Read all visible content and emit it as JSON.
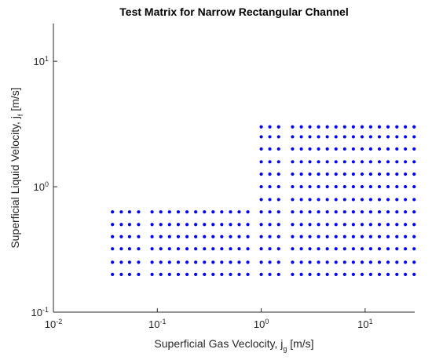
{
  "chart_data": {
    "type": "scatter",
    "title": "Test Matrix for Narrow Rectangular Channel",
    "x_label": "Superficial Gas Veclocity, j_g [m/s]",
    "y_label": "Superficial Liquid Velocity, j_f [m/s]",
    "xlog": true,
    "ylog": true,
    "xlim": [
      0.01,
      30
    ],
    "ylim": [
      0.1,
      20
    ],
    "xticks": [
      {
        "value": 0.01,
        "label": "10^-2"
      },
      {
        "value": 0.1,
        "label": "10^-1"
      },
      {
        "value": 1,
        "label": "10^0"
      },
      {
        "value": 10,
        "label": "10^1"
      }
    ],
    "yticks": [
      {
        "value": 0.1,
        "label": "10^-1"
      },
      {
        "value": 1,
        "label": "10^0"
      },
      {
        "value": 10,
        "label": "10^1"
      }
    ],
    "color": "#0000ff",
    "x": [
      0.037,
      0.037,
      0.037,
      0.037,
      0.037,
      0.037,
      0.045,
      0.045,
      0.045,
      0.045,
      0.045,
      0.045,
      0.054,
      0.054,
      0.054,
      0.054,
      0.054,
      0.054,
      0.066,
      0.066,
      0.066,
      0.066,
      0.066,
      0.066,
      0.089,
      0.089,
      0.089,
      0.089,
      0.089,
      0.089,
      0.108,
      0.108,
      0.108,
      0.108,
      0.108,
      0.108,
      0.131,
      0.131,
      0.131,
      0.131,
      0.131,
      0.131,
      0.159,
      0.159,
      0.159,
      0.159,
      0.159,
      0.159,
      0.193,
      0.193,
      0.193,
      0.193,
      0.193,
      0.193,
      0.234,
      0.234,
      0.234,
      0.234,
      0.234,
      0.234,
      0.284,
      0.284,
      0.284,
      0.284,
      0.284,
      0.284,
      0.344,
      0.344,
      0.344,
      0.344,
      0.344,
      0.344,
      0.417,
      0.417,
      0.417,
      0.417,
      0.417,
      0.417,
      0.506,
      0.506,
      0.506,
      0.506,
      0.506,
      0.506,
      0.613,
      0.613,
      0.613,
      0.613,
      0.613,
      0.613,
      0.743,
      0.743,
      0.743,
      0.743,
      0.743,
      0.743,
      1,
      1,
      1,
      1,
      1,
      1,
      1,
      1,
      1,
      1,
      1,
      1,
      1,
      1.21,
      1.21,
      1.21,
      1.21,
      1.21,
      1.21,
      1.21,
      1.21,
      1.21,
      1.21,
      1.21,
      1.21,
      1.21,
      1.47,
      1.47,
      1.47,
      1.47,
      1.47,
      1.47,
      1.47,
      1.47,
      1.47,
      1.47,
      1.47,
      1.47,
      1.47,
      2,
      2,
      2,
      2,
      2,
      2,
      2,
      2,
      2,
      2,
      2,
      2,
      2,
      2.43,
      2.43,
      2.43,
      2.43,
      2.43,
      2.43,
      2.43,
      2.43,
      2.43,
      2.43,
      2.43,
      2.43,
      2.43,
      2.94,
      2.94,
      2.94,
      2.94,
      2.94,
      2.94,
      2.94,
      2.94,
      2.94,
      2.94,
      2.94,
      2.94,
      2.94,
      3.56,
      3.56,
      3.56,
      3.56,
      3.56,
      3.56,
      3.56,
      3.56,
      3.56,
      3.56,
      3.56,
      3.56,
      3.56,
      4.32,
      4.32,
      4.32,
      4.32,
      4.32,
      4.32,
      4.32,
      4.32,
      4.32,
      4.32,
      4.32,
      4.32,
      4.32,
      5.24,
      5.24,
      5.24,
      5.24,
      5.24,
      5.24,
      5.24,
      5.24,
      5.24,
      5.24,
      5.24,
      5.24,
      5.24,
      6.35,
      6.35,
      6.35,
      6.35,
      6.35,
      6.35,
      6.35,
      6.35,
      6.35,
      6.35,
      6.35,
      6.35,
      6.35,
      7.7,
      7.7,
      7.7,
      7.7,
      7.7,
      7.7,
      7.7,
      7.7,
      7.7,
      7.7,
      7.7,
      7.7,
      7.7,
      9.34,
      9.34,
      9.34,
      9.34,
      9.34,
      9.34,
      9.34,
      9.34,
      9.34,
      9.34,
      9.34,
      9.34,
      9.34,
      11.3,
      11.3,
      11.3,
      11.3,
      11.3,
      11.3,
      11.3,
      11.3,
      11.3,
      11.3,
      11.3,
      11.3,
      11.3,
      13.7,
      13.7,
      13.7,
      13.7,
      13.7,
      13.7,
      13.7,
      13.7,
      13.7,
      13.7,
      13.7,
      13.7,
      13.7,
      16.6,
      16.6,
      16.6,
      16.6,
      16.6,
      16.6,
      16.6,
      16.6,
      16.6,
      16.6,
      16.6,
      16.6,
      16.6,
      20.2,
      20.2,
      20.2,
      20.2,
      20.2,
      20.2,
      20.2,
      20.2,
      20.2,
      20.2,
      20.2,
      20.2,
      20.2,
      24.4,
      24.4,
      24.4,
      24.4,
      24.4,
      24.4,
      24.4,
      24.4,
      24.4,
      24.4,
      24.4,
      24.4,
      24.4,
      29.6,
      29.6,
      29.6,
      29.6,
      29.6,
      29.6,
      29.6,
      29.6,
      29.6,
      29.6,
      29.6,
      29.6,
      29.6
    ],
    "values": [
      0.2,
      0.25,
      0.32,
      0.4,
      0.5,
      0.63,
      0.2,
      0.25,
      0.32,
      0.4,
      0.5,
      0.63,
      0.2,
      0.25,
      0.32,
      0.4,
      0.5,
      0.63,
      0.2,
      0.25,
      0.32,
      0.4,
      0.5,
      0.63,
      0.2,
      0.25,
      0.32,
      0.4,
      0.5,
      0.63,
      0.2,
      0.25,
      0.32,
      0.4,
      0.5,
      0.63,
      0.2,
      0.25,
      0.32,
      0.4,
      0.5,
      0.63,
      0.2,
      0.25,
      0.32,
      0.4,
      0.5,
      0.63,
      0.2,
      0.25,
      0.32,
      0.4,
      0.5,
      0.63,
      0.2,
      0.25,
      0.32,
      0.4,
      0.5,
      0.63,
      0.2,
      0.25,
      0.32,
      0.4,
      0.5,
      0.63,
      0.2,
      0.25,
      0.32,
      0.4,
      0.5,
      0.63,
      0.2,
      0.25,
      0.32,
      0.4,
      0.5,
      0.63,
      0.2,
      0.25,
      0.32,
      0.4,
      0.5,
      0.63,
      0.2,
      0.25,
      0.32,
      0.4,
      0.5,
      0.63,
      0.2,
      0.25,
      0.32,
      0.4,
      0.5,
      0.63,
      0.2,
      0.25,
      0.32,
      0.4,
      0.5,
      0.63,
      0.79,
      1,
      1.26,
      1.58,
      2,
      2.5,
      3,
      0.2,
      0.25,
      0.32,
      0.4,
      0.5,
      0.63,
      0.79,
      1,
      1.26,
      1.58,
      2,
      2.5,
      3,
      0.2,
      0.25,
      0.32,
      0.4,
      0.5,
      0.63,
      0.79,
      1,
      1.26,
      1.58,
      2,
      2.5,
      3,
      0.2,
      0.25,
      0.32,
      0.4,
      0.5,
      0.63,
      0.79,
      1,
      1.26,
      1.58,
      2,
      2.5,
      3,
      0.2,
      0.25,
      0.32,
      0.4,
      0.5,
      0.63,
      0.79,
      1,
      1.26,
      1.58,
      2,
      2.5,
      3,
      0.2,
      0.25,
      0.32,
      0.4,
      0.5,
      0.63,
      0.79,
      1,
      1.26,
      1.58,
      2,
      2.5,
      3,
      0.2,
      0.25,
      0.32,
      0.4,
      0.5,
      0.63,
      0.79,
      1,
      1.26,
      1.58,
      2,
      2.5,
      3,
      0.2,
      0.25,
      0.32,
      0.4,
      0.5,
      0.63,
      0.79,
      1,
      1.26,
      1.58,
      2,
      2.5,
      3,
      0.2,
      0.25,
      0.32,
      0.4,
      0.5,
      0.63,
      0.79,
      1,
      1.26,
      1.58,
      2,
      2.5,
      3,
      0.2,
      0.25,
      0.32,
      0.4,
      0.5,
      0.63,
      0.79,
      1,
      1.26,
      1.58,
      2,
      2.5,
      3,
      0.2,
      0.25,
      0.32,
      0.4,
      0.5,
      0.63,
      0.79,
      1,
      1.26,
      1.58,
      2,
      2.5,
      3,
      0.2,
      0.25,
      0.32,
      0.4,
      0.5,
      0.63,
      0.79,
      1,
      1.26,
      1.58,
      2,
      2.5,
      3,
      0.2,
      0.25,
      0.32,
      0.4,
      0.5,
      0.63,
      0.79,
      1,
      1.26,
      1.58,
      2,
      2.5,
      3,
      0.2,
      0.25,
      0.32,
      0.4,
      0.5,
      0.63,
      0.79,
      1,
      1.26,
      1.58,
      2,
      2.5,
      3,
      0.2,
      0.25,
      0.32,
      0.4,
      0.5,
      0.63,
      0.79,
      1,
      1.26,
      1.58,
      2,
      2.5,
      3,
      0.2,
      0.25,
      0.32,
      0.4,
      0.5,
      0.63,
      0.79,
      1,
      1.26,
      1.58,
      2,
      2.5,
      3,
      0.2,
      0.25,
      0.32,
      0.4,
      0.5,
      0.63,
      0.79,
      1,
      1.26,
      1.58,
      2,
      2.5,
      3,
      0.2,
      0.25,
      0.32,
      0.4,
      0.5,
      0.63,
      0.79,
      1,
      1.26,
      1.58,
      2,
      2.5,
      3
    ]
  }
}
